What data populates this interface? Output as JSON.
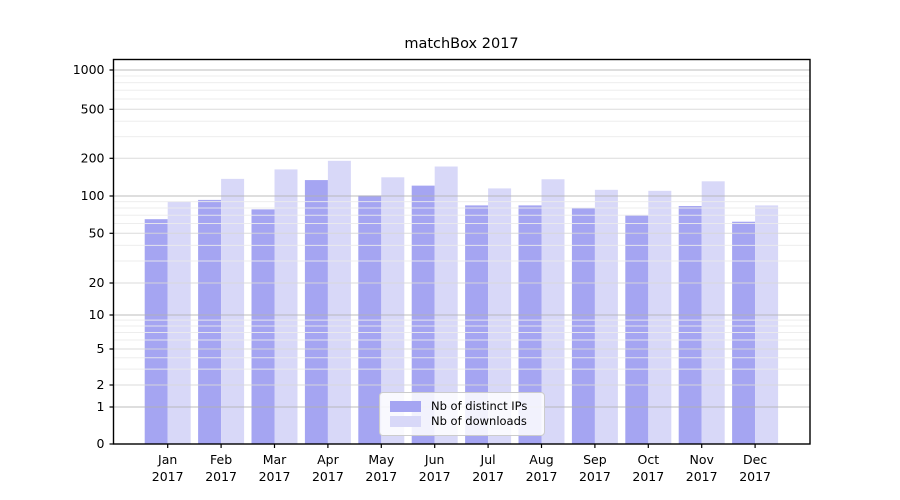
{
  "chart_data": {
    "type": "bar",
    "title": "matchBox 2017",
    "year_label": "2017",
    "categories": [
      "Jan",
      "Feb",
      "Mar",
      "Apr",
      "May",
      "Jun",
      "Jul",
      "Aug",
      "Sep",
      "Oct",
      "Nov",
      "Dec"
    ],
    "series": [
      {
        "name": "Nb of distinct IPs",
        "color": "#a5a5f2",
        "values": [
          65,
          93,
          78,
          134,
          101,
          121,
          84,
          84,
          80,
          70,
          83,
          62
        ]
      },
      {
        "name": "Nb of downloads",
        "color": "#d8d8f8",
        "values": [
          90,
          137,
          163,
          191,
          141,
          172,
          115,
          136,
          112,
          110,
          131,
          84
        ]
      }
    ],
    "xlabel": "",
    "ylabel": "",
    "yscale": "symlog",
    "yticks": [
      0,
      1,
      2,
      5,
      10,
      20,
      50,
      100,
      200,
      500,
      1000
    ],
    "ylim": [
      0,
      1200
    ],
    "grid": "both",
    "legend_position": "lower center",
    "colors": {
      "grid_major": "#b2b2b2",
      "grid_mid": "#d7d7d7",
      "grid_minor": "#ebebeb",
      "spine": "#000000",
      "text": "#000000"
    }
  }
}
